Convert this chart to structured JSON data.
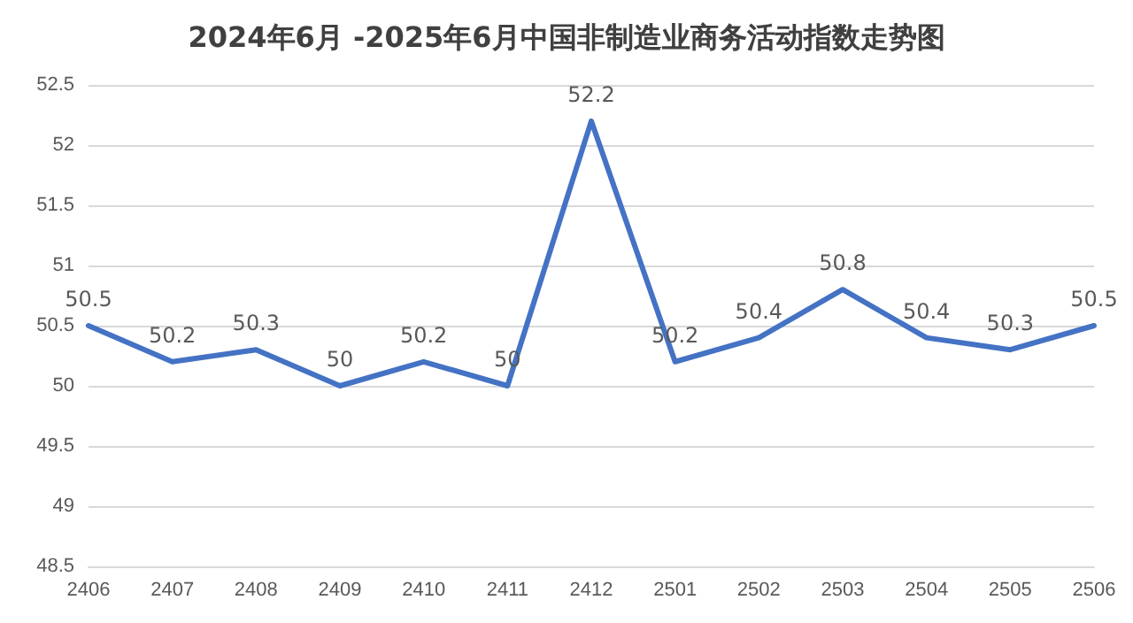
{
  "chart_data": {
    "type": "line",
    "title": "2024年6月 -2025年6月中国非制造业商务活动指数走势图",
    "categories": [
      "2406",
      "2407",
      "2408",
      "2409",
      "2410",
      "2411",
      "2412",
      "2501",
      "2502",
      "2503",
      "2504",
      "2505",
      "2506"
    ],
    "values": [
      50.5,
      50.2,
      50.3,
      50,
      50.2,
      50,
      52.2,
      50.2,
      50.4,
      50.8,
      50.4,
      50.3,
      50.5
    ],
    "color": "#4472c4",
    "ylim": [
      48.5,
      52.5
    ],
    "yticks": [
      48.5,
      49,
      49.5,
      50,
      50.5,
      51,
      51.5,
      52,
      52.5
    ],
    "grid": "y",
    "data_labels": true,
    "marker": "none",
    "line_style": "solid"
  }
}
